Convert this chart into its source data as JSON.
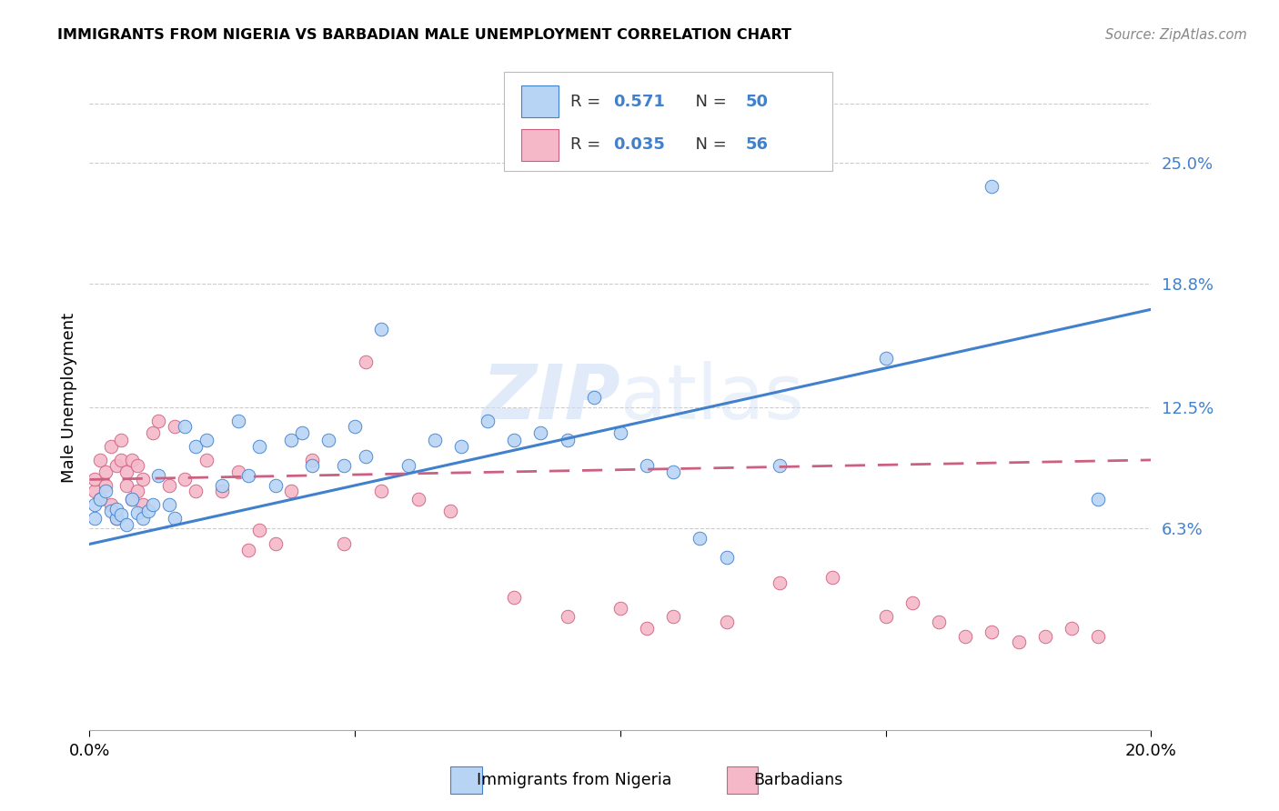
{
  "title": "IMMIGRANTS FROM NIGERIA VS BARBADIAN MALE UNEMPLOYMENT CORRELATION CHART",
  "source": "Source: ZipAtlas.com",
  "ylabel": "Male Unemployment",
  "xlim": [
    0.0,
    0.2
  ],
  "ylim": [
    -0.04,
    0.3
  ],
  "yticks": [
    0.063,
    0.125,
    0.188,
    0.25
  ],
  "ytick_labels": [
    "6.3%",
    "12.5%",
    "18.8%",
    "25.0%"
  ],
  "xticks": [
    0.0,
    0.05,
    0.1,
    0.15,
    0.2
  ],
  "xtick_labels": [
    "0.0%",
    "",
    "",
    "",
    "20.0%"
  ],
  "r1": "0.571",
  "n1": "50",
  "r2": "0.035",
  "n2": "56",
  "color_nigeria": "#b8d4f5",
  "color_barbadian": "#f5b8c8",
  "color_line_nigeria": "#4080cc",
  "color_line_barbadian": "#cc6080",
  "color_axis": "#4080cc",
  "watermark_color": "#ccddf5",
  "nig_line_x0": 0.0,
  "nig_line_y0": 0.055,
  "nig_line_x1": 0.2,
  "nig_line_y1": 0.175,
  "bar_line_x0": 0.0,
  "bar_line_y0": 0.088,
  "bar_line_x1": 0.2,
  "bar_line_y1": 0.098,
  "nigeria_x": [
    0.001,
    0.001,
    0.002,
    0.003,
    0.004,
    0.005,
    0.005,
    0.006,
    0.007,
    0.008,
    0.009,
    0.01,
    0.011,
    0.012,
    0.013,
    0.015,
    0.016,
    0.018,
    0.02,
    0.022,
    0.025,
    0.028,
    0.03,
    0.032,
    0.035,
    0.038,
    0.04,
    0.042,
    0.045,
    0.048,
    0.05,
    0.052,
    0.055,
    0.06,
    0.065,
    0.07,
    0.075,
    0.08,
    0.085,
    0.09,
    0.095,
    0.1,
    0.105,
    0.11,
    0.115,
    0.12,
    0.13,
    0.15,
    0.17,
    0.19
  ],
  "nigeria_y": [
    0.068,
    0.075,
    0.078,
    0.082,
    0.072,
    0.068,
    0.073,
    0.07,
    0.065,
    0.078,
    0.071,
    0.068,
    0.072,
    0.075,
    0.09,
    0.075,
    0.068,
    0.115,
    0.105,
    0.108,
    0.085,
    0.118,
    0.09,
    0.105,
    0.085,
    0.108,
    0.112,
    0.095,
    0.108,
    0.095,
    0.115,
    0.1,
    0.165,
    0.095,
    0.108,
    0.105,
    0.118,
    0.108,
    0.112,
    0.108,
    0.13,
    0.112,
    0.095,
    0.092,
    0.058,
    0.048,
    0.095,
    0.15,
    0.238,
    0.078
  ],
  "barbadian_x": [
    0.001,
    0.001,
    0.002,
    0.002,
    0.003,
    0.003,
    0.004,
    0.004,
    0.005,
    0.005,
    0.006,
    0.006,
    0.007,
    0.007,
    0.008,
    0.008,
    0.009,
    0.009,
    0.01,
    0.01,
    0.012,
    0.013,
    0.015,
    0.016,
    0.018,
    0.02,
    0.022,
    0.025,
    0.028,
    0.03,
    0.032,
    0.035,
    0.038,
    0.042,
    0.048,
    0.052,
    0.055,
    0.062,
    0.068,
    0.08,
    0.09,
    0.1,
    0.105,
    0.11,
    0.12,
    0.13,
    0.14,
    0.15,
    0.155,
    0.16,
    0.165,
    0.17,
    0.175,
    0.18,
    0.185,
    0.19
  ],
  "barbadian_y": [
    0.082,
    0.088,
    0.078,
    0.098,
    0.085,
    0.092,
    0.075,
    0.105,
    0.068,
    0.095,
    0.098,
    0.108,
    0.085,
    0.092,
    0.078,
    0.098,
    0.082,
    0.095,
    0.075,
    0.088,
    0.112,
    0.118,
    0.085,
    0.115,
    0.088,
    0.082,
    0.098,
    0.082,
    0.092,
    0.052,
    0.062,
    0.055,
    0.082,
    0.098,
    0.055,
    0.148,
    0.082,
    0.078,
    0.072,
    0.028,
    0.018,
    0.022,
    0.012,
    0.018,
    0.015,
    0.035,
    0.038,
    0.018,
    0.025,
    0.015,
    0.008,
    0.01,
    0.005,
    0.008,
    0.012,
    0.008
  ]
}
